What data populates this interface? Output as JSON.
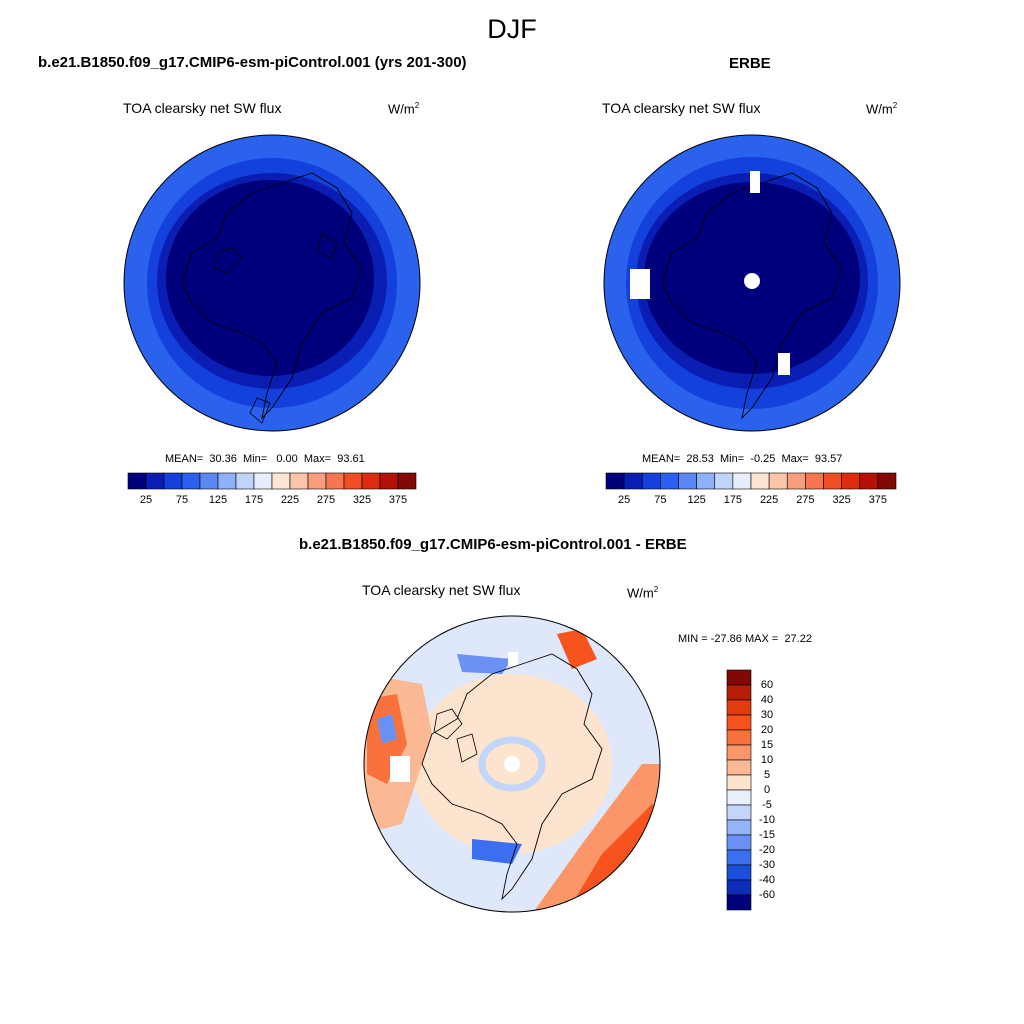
{
  "figure": {
    "season": "DJF",
    "unit_base": "W/m",
    "unit_exp": "2"
  },
  "panels": {
    "model": {
      "title": "b.e21.B1850.f09_g17.CMIP6-esm-piControl.001 (yrs 201-300)",
      "variable": "TOA clearsky net SW flux",
      "mean_label": "MEAN=",
      "mean": "30.36",
      "min_label": "Min=",
      "min": "0.00",
      "max_label": "Max=",
      "max": "93.61"
    },
    "obs": {
      "title": "ERBE",
      "variable": "TOA clearsky net SW flux",
      "mean_label": "MEAN=",
      "mean": "28.53",
      "min_label": "Min=",
      "min": "-0.25",
      "max_label": "Max=",
      "max": "93.57"
    },
    "diff": {
      "title": "b.e21.B1850.f09_g17.CMIP6-esm-piControl.001 - ERBE",
      "variable": "TOA clearsky net SW flux",
      "min_label": "MIN =",
      "min": "-27.86",
      "max_label": "MAX =",
      "max": "27.22"
    }
  },
  "colorbars": {
    "abs": {
      "tick_labels": [
        "25",
        "75",
        "125",
        "175",
        "225",
        "275",
        "325",
        "375"
      ],
      "colors": [
        "#00007d",
        "#0a1eb4",
        "#1440dc",
        "#2a60ef",
        "#5c88f5",
        "#8eb0f8",
        "#c0d4fa",
        "#e6eefc",
        "#fde5d4",
        "#fcc4a8",
        "#fa9d7c",
        "#f77650",
        "#ef4d22",
        "#db2c0c",
        "#b51207",
        "#830703"
      ]
    },
    "diff": {
      "tick_labels": [
        "60",
        "40",
        "30",
        "20",
        "15",
        "10",
        "5",
        "0",
        "-5",
        "-10",
        "-15",
        "-20",
        "-30",
        "-40",
        "-60"
      ],
      "colors": [
        "#830703",
        "#b51d06",
        "#e03c0e",
        "#f6531e",
        "#f9713b",
        "#fb9668",
        "#fbb894",
        "#fde4cf",
        "#e8eefc",
        "#c2d5fa",
        "#93b4f8",
        "#6a91f5",
        "#3c6ef0",
        "#1b4fdb",
        "#0c2db8",
        "#00007d"
      ]
    }
  },
  "chart_data": [
    {
      "type": "heatmap",
      "title": "b.e21.B1850.f09_g17.CMIP6-esm-piControl.001 (yrs 201-300)",
      "subtitle": "TOA clearsky net SW flux",
      "projection": "north polar stereographic",
      "units": "W/m2",
      "mean": 30.36,
      "min": 0.0,
      "max": 93.61,
      "colorbar_levels": [
        25,
        50,
        75,
        100,
        125,
        150,
        175,
        200,
        225,
        250,
        275,
        300,
        325,
        350,
        375
      ]
    },
    {
      "type": "heatmap",
      "title": "ERBE",
      "subtitle": "TOA clearsky net SW flux",
      "projection": "north polar stereographic",
      "units": "W/m2",
      "mean": 28.53,
      "min": -0.25,
      "max": 93.57,
      "colorbar_levels": [
        25,
        50,
        75,
        100,
        125,
        150,
        175,
        200,
        225,
        250,
        275,
        300,
        325,
        350,
        375
      ]
    },
    {
      "type": "heatmap",
      "title": "b.e21.B1850.f09_g17.CMIP6-esm-piControl.001 - ERBE",
      "subtitle": "TOA clearsky net SW flux",
      "projection": "north polar stereographic",
      "units": "W/m2",
      "min": -27.86,
      "max": 27.22,
      "colorbar_levels": [
        60,
        40,
        30,
        20,
        15,
        10,
        5,
        0,
        -5,
        -10,
        -15,
        -20,
        -30,
        -40,
        -60
      ]
    }
  ]
}
